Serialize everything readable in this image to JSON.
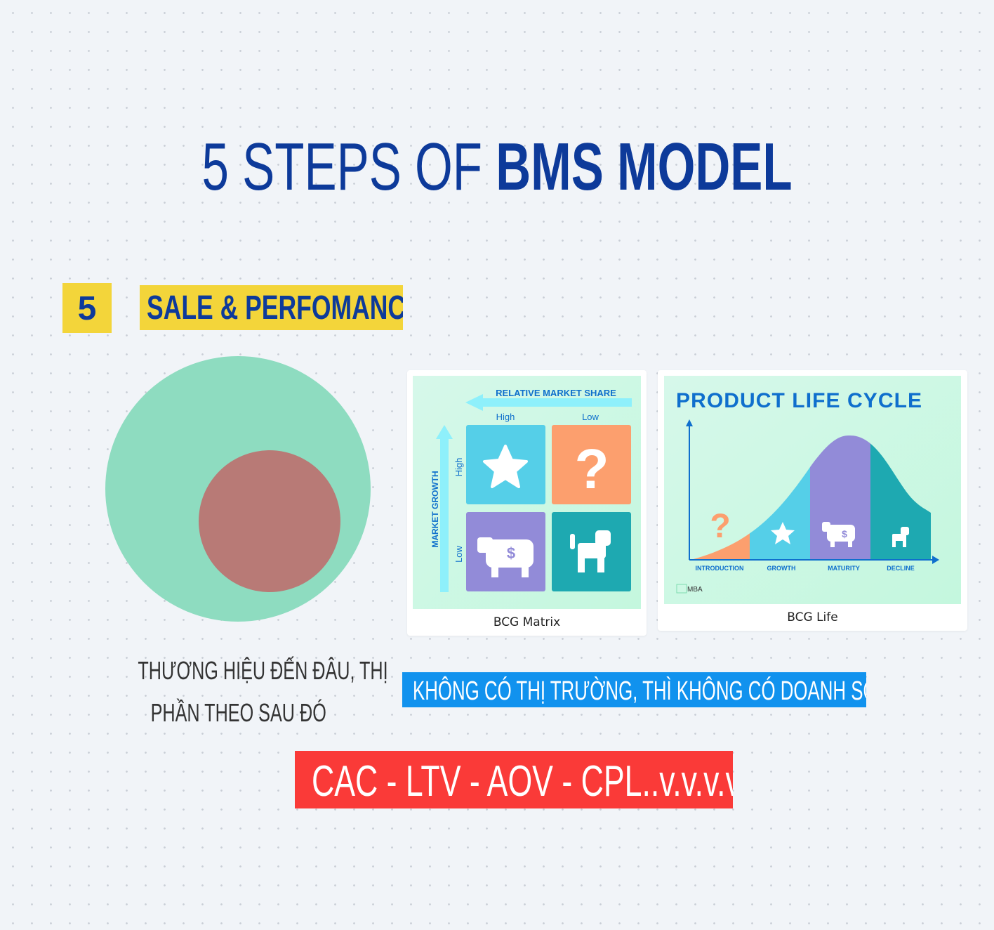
{
  "title": {
    "part1": "5 STEPS OF ",
    "part2": "BMS MODEL"
  },
  "step": {
    "number": "5",
    "label": "SALE & PERFOMANCE"
  },
  "venn": {
    "outer_color": "#8edcc0",
    "inner_color": "#b87a76"
  },
  "bcg_matrix": {
    "caption": "BCG Matrix",
    "x_axis": "RELATIVE MARKET SHARE",
    "y_axis": "MARKET GROWTH",
    "x_high": "High",
    "x_low": "Low",
    "y_high": "High",
    "y_low": "Low",
    "icons": [
      "star-icon",
      "question-icon",
      "cash-cow-icon",
      "dog-icon"
    ],
    "colors": {
      "star": "#55cfe8",
      "question": "#fc9f6e",
      "cow": "#928bd8",
      "dog": "#1ea9b1"
    }
  },
  "life_cycle": {
    "caption": "BCG Life",
    "title": "PRODUCT LIFE CYCLE",
    "stages": [
      "INTRODUCTION",
      "GROWTH",
      "MATURITY",
      "DECLINE"
    ],
    "logo": "MBA"
  },
  "caption_left": {
    "line1": "THƯƠNG HIỆU ĐẾN ĐÂU, THỊ",
    "line2": "PHẦN THEO SAU ĐÓ"
  },
  "blue_banner": "KHÔNG CÓ THỊ TRƯỜNG, THÌ KHÔNG CÓ DOANH SỐ",
  "red_banner": "CAC - LTV - AOV - CPL..v.v.v.v"
}
